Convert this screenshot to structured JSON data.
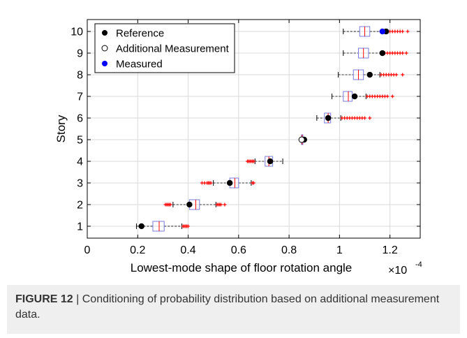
{
  "figure": {
    "label": "FIGURE 12",
    "separator": " | ",
    "caption": "Conditioning of probability distribution based on additional measurement data."
  },
  "colors": {
    "reference": "#000000",
    "measured": "#0000ff",
    "box": "#7b7bdd",
    "median": "#ff0000",
    "outlier": "#ff0000",
    "whisker": "#000000",
    "grid": "#d9d9d9"
  },
  "chart_data": {
    "type": "boxplot",
    "orientation": "horizontal",
    "xlabel": "Lowest-mode shape of floor rotation angle",
    "ylabel": "Story",
    "x_exponent_label": "×10",
    "x_exponent_power": "-4",
    "xlim": [
      0,
      1.32
    ],
    "ylim": [
      0.45,
      10.55
    ],
    "x_ticks": [
      0,
      0.2,
      0.4,
      0.6,
      0.8,
      1,
      1.2
    ],
    "x_tick_labels": [
      "0",
      "0.2",
      "0.4",
      "0.6",
      "0.8",
      "1",
      "1.2"
    ],
    "y_ticks": [
      1,
      2,
      3,
      4,
      5,
      6,
      7,
      8,
      9,
      10
    ],
    "y_tick_labels": [
      "1",
      "2",
      "3",
      "4",
      "5",
      "6",
      "7",
      "8",
      "9",
      "10"
    ],
    "grid": true,
    "legend": {
      "position": "top-left",
      "entries": [
        {
          "label": "Reference",
          "marker": "filled-black"
        },
        {
          "label": "Additional Measurement",
          "marker": "open-black"
        },
        {
          "label": "Measured",
          "marker": "filled-blue"
        }
      ]
    },
    "boxes": [
      {
        "story": 1,
        "whisker_low": 0.195,
        "q1": 0.26,
        "median": 0.285,
        "q3": 0.305,
        "whisker_high": 0.375,
        "outliers": [
          0.38,
          0.385,
          0.39,
          0.395,
          0.4
        ]
      },
      {
        "story": 2,
        "whisker_low": 0.34,
        "q1": 0.405,
        "median": 0.43,
        "q3": 0.445,
        "whisker_high": 0.51,
        "outliers": [
          0.31,
          0.315,
          0.32,
          0.325,
          0.33,
          0.515,
          0.52,
          0.525,
          0.53,
          0.545
        ]
      },
      {
        "story": 3,
        "whisker_low": 0.5,
        "q1": 0.565,
        "median": 0.585,
        "q3": 0.6,
        "whisker_high": 0.65,
        "outliers": [
          0.455,
          0.465,
          0.475,
          0.48,
          0.485,
          0.49,
          0.655,
          0.66
        ]
      },
      {
        "story": 4,
        "whisker_low": 0.665,
        "q1": 0.705,
        "median": 0.72,
        "q3": 0.735,
        "whisker_high": 0.775,
        "outliers": [
          0.635,
          0.64,
          0.645,
          0.65,
          0.655,
          0.66
        ]
      },
      {
        "story": 5,
        "whisker_low": 0.845,
        "q1": 0.849,
        "median": 0.852,
        "q3": 0.855,
        "whisker_high": 0.86,
        "outliers": []
      },
      {
        "story": 6,
        "whisker_low": 0.91,
        "q1": 0.94,
        "median": 0.955,
        "q3": 0.965,
        "whisker_high": 1.005,
        "outliers": [
          1.01,
          1.02,
          1.03,
          1.04,
          1.05,
          1.06,
          1.07,
          1.08,
          1.09,
          1.1,
          1.12
        ]
      },
      {
        "story": 7,
        "whisker_low": 0.97,
        "q1": 1.015,
        "median": 1.035,
        "q3": 1.05,
        "whisker_high": 1.105,
        "outliers": [
          1.11,
          1.12,
          1.13,
          1.14,
          1.15,
          1.16,
          1.17,
          1.18,
          1.19,
          1.21
        ]
      },
      {
        "story": 8,
        "whisker_low": 0.995,
        "q1": 1.055,
        "median": 1.075,
        "q3": 1.095,
        "whisker_high": 1.16,
        "outliers": [
          1.165,
          1.175,
          1.185,
          1.195,
          1.205,
          1.215,
          1.225,
          1.25
        ]
      },
      {
        "story": 9,
        "whisker_low": 1.015,
        "q1": 1.075,
        "median": 1.095,
        "q3": 1.115,
        "whisker_high": 1.17,
        "outliers": [
          1.18,
          1.19,
          1.2,
          1.21,
          1.22,
          1.23,
          1.24,
          1.25,
          1.265
        ]
      },
      {
        "story": 10,
        "whisker_low": 1.015,
        "q1": 1.08,
        "median": 1.1,
        "q3": 1.12,
        "whisker_high": 1.18,
        "outliers": [
          1.19,
          1.2,
          1.21,
          1.22,
          1.23,
          1.24,
          1.25,
          1.27
        ]
      }
    ],
    "reference_points": [
      {
        "story": 1,
        "value": 0.215
      },
      {
        "story": 2,
        "value": 0.405
      },
      {
        "story": 3,
        "value": 0.565
      },
      {
        "story": 4,
        "value": 0.725
      },
      {
        "story": 5,
        "value": 0.86
      },
      {
        "story": 6,
        "value": 0.955
      },
      {
        "story": 7,
        "value": 1.06
      },
      {
        "story": 8,
        "value": 1.12
      },
      {
        "story": 9,
        "value": 1.17
      },
      {
        "story": 10,
        "value": 1.185
      }
    ],
    "additional_measurement_points": [
      {
        "story": 5,
        "value": 0.85
      }
    ],
    "measured_points": [
      {
        "story": 10,
        "value": 1.17
      }
    ]
  }
}
